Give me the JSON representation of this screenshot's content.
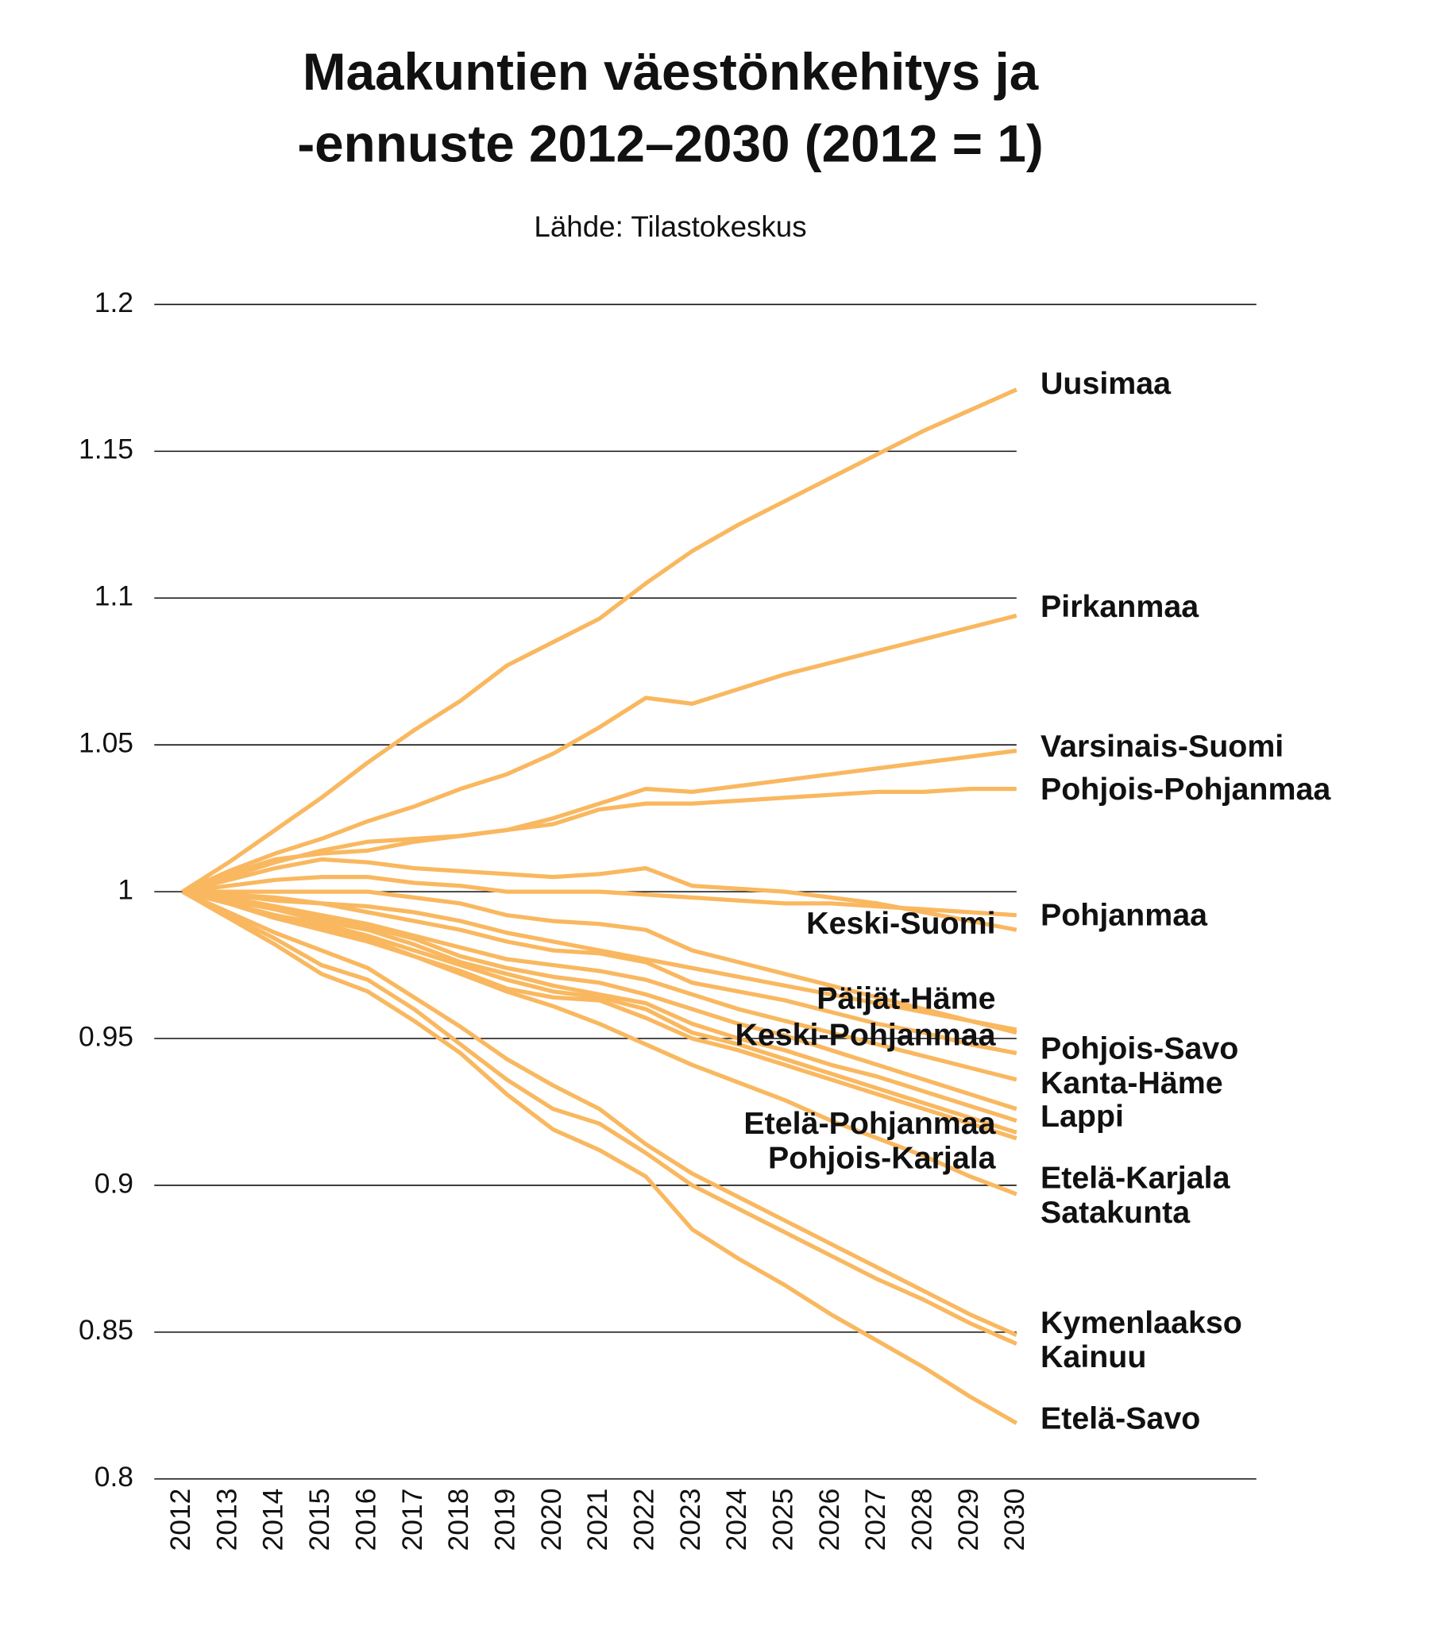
{
  "chart_data": {
    "type": "line",
    "title": [
      "Maakuntien väestönkehitys ja",
      "-ennuste 2012–2030 (2012 = 1)"
    ],
    "subtitle": "Lähde: Tilastokeskus",
    "color": "#f9b860",
    "x": [
      2012,
      2013,
      2014,
      2015,
      2016,
      2017,
      2018,
      2019,
      2020,
      2021,
      2022,
      2023,
      2024,
      2025,
      2026,
      2027,
      2028,
      2029,
      2030
    ],
    "xlim": [
      2012,
      2030
    ],
    "xticks": [
      2012,
      2013,
      2014,
      2015,
      2016,
      2017,
      2018,
      2019,
      2020,
      2021,
      2022,
      2023,
      2024,
      2025,
      2026,
      2027,
      2028,
      2029,
      2030
    ],
    "ylim": [
      0.8,
      1.2
    ],
    "yticks": [
      0.8,
      0.85,
      0.9,
      0.95,
      1,
      1.05,
      1.1,
      1.15,
      1.2
    ],
    "grid": true,
    "series": [
      {
        "name": "Uusimaa",
        "values": [
          1,
          1.01,
          1.021,
          1.032,
          1.044,
          1.055,
          1.065,
          1.077,
          1.085,
          1.093,
          1.105,
          1.116,
          1.125,
          1.133,
          1.141,
          1.149,
          1.157,
          1.164,
          1.171
        ]
      },
      {
        "name": "Pirkanmaa",
        "values": [
          1,
          1.007,
          1.013,
          1.018,
          1.024,
          1.029,
          1.035,
          1.04,
          1.047,
          1.056,
          1.066,
          1.064,
          1.069,
          1.074,
          1.078,
          1.082,
          1.086,
          1.09,
          1.094
        ]
      },
      {
        "name": "Varsinais-Suomi",
        "values": [
          1,
          1.005,
          1.01,
          1.014,
          1.017,
          1.018,
          1.019,
          1.021,
          1.025,
          1.03,
          1.035,
          1.034,
          1.036,
          1.038,
          1.04,
          1.042,
          1.044,
          1.046,
          1.048
        ]
      },
      {
        "name": "Pohjois-Pohjanmaa",
        "values": [
          1,
          1.006,
          1.011,
          1.013,
          1.014,
          1.017,
          1.019,
          1.021,
          1.023,
          1.028,
          1.03,
          1.03,
          1.031,
          1.032,
          1.033,
          1.034,
          1.034,
          1.035,
          1.035
        ]
      },
      {
        "name": "Pohjanmaa",
        "values": [
          1,
          1.002,
          1.004,
          1.005,
          1.005,
          1.003,
          1.002,
          1,
          1,
          1,
          0.999,
          0.998,
          0.997,
          0.996,
          0.996,
          0.995,
          0.994,
          0.993,
          0.992
        ]
      },
      {
        "name": "Keski-Suomi",
        "values": [
          1,
          1.004,
          1.008,
          1.011,
          1.01,
          1.008,
          1.007,
          1.006,
          1.005,
          1.006,
          1.008,
          1.002,
          1.001,
          1,
          0.998,
          0.996,
          0.993,
          0.99,
          0.987
        ]
      },
      {
        "name": "Päijät-Häme",
        "values": [
          1,
          0.999,
          0.997,
          0.996,
          0.995,
          0.993,
          0.99,
          0.986,
          0.983,
          0.98,
          0.977,
          0.974,
          0.971,
          0.968,
          0.965,
          0.962,
          0.959,
          0.956,
          0.953
        ]
      },
      {
        "name": "Keski-Pohjanmaa",
        "values": [
          1,
          0.999,
          0.998,
          0.996,
          0.993,
          0.99,
          0.987,
          0.983,
          0.98,
          0.979,
          0.976,
          0.969,
          0.966,
          0.963,
          0.959,
          0.955,
          0.952,
          0.948,
          0.945
        ]
      },
      {
        "name": "Pohjois-Savo",
        "values": [
          1,
          1,
          1,
          1,
          1,
          0.998,
          0.996,
          0.992,
          0.99,
          0.989,
          0.987,
          0.98,
          0.976,
          0.972,
          0.968,
          0.964,
          0.96,
          0.956,
          0.952
        ]
      },
      {
        "name": "Kanta-Häme",
        "values": [
          1,
          0.998,
          0.995,
          0.992,
          0.989,
          0.985,
          0.981,
          0.977,
          0.975,
          0.973,
          0.97,
          0.965,
          0.96,
          0.956,
          0.952,
          0.948,
          0.944,
          0.94,
          0.936
        ]
      },
      {
        "name": "Lappi",
        "values": [
          1,
          0.997,
          0.994,
          0.991,
          0.988,
          0.984,
          0.978,
          0.974,
          0.971,
          0.969,
          0.965,
          0.96,
          0.955,
          0.951,
          0.946,
          0.941,
          0.936,
          0.931,
          0.926
        ]
      },
      {
        "name": "Etelä-Pohjanmaa",
        "values": [
          1,
          0.997,
          0.994,
          0.99,
          0.987,
          0.982,
          0.976,
          0.972,
          0.968,
          0.965,
          0.962,
          0.955,
          0.95,
          0.946,
          0.941,
          0.937,
          0.932,
          0.927,
          0.922
        ]
      },
      {
        "name": "Pohjois-Karjala",
        "values": [
          1,
          0.996,
          0.992,
          0.989,
          0.985,
          0.98,
          0.975,
          0.97,
          0.966,
          0.964,
          0.96,
          0.952,
          0.948,
          0.943,
          0.938,
          0.933,
          0.928,
          0.923,
          0.918
        ]
      },
      {
        "name": "Etelä-Karjala",
        "values": [
          1,
          0.996,
          0.991,
          0.988,
          0.984,
          0.978,
          0.973,
          0.967,
          0.964,
          0.963,
          0.957,
          0.95,
          0.946,
          0.941,
          0.936,
          0.931,
          0.926,
          0.921,
          0.916
        ]
      },
      {
        "name": "Satakunta",
        "values": [
          1,
          0.996,
          0.991,
          0.987,
          0.983,
          0.978,
          0.972,
          0.966,
          0.961,
          0.955,
          0.948,
          0.941,
          0.935,
          0.929,
          0.922,
          0.916,
          0.91,
          0.903,
          0.897
        ]
      },
      {
        "name": "Kymenlaakso",
        "values": [
          1,
          0.993,
          0.986,
          0.98,
          0.974,
          0.964,
          0.954,
          0.943,
          0.934,
          0.926,
          0.914,
          0.904,
          0.896,
          0.888,
          0.88,
          0.872,
          0.864,
          0.856,
          0.849
        ]
      },
      {
        "name": "Kainuu",
        "values": [
          1,
          0.992,
          0.984,
          0.975,
          0.97,
          0.96,
          0.948,
          0.936,
          0.926,
          0.921,
          0.911,
          0.9,
          0.892,
          0.884,
          0.876,
          0.868,
          0.861,
          0.853,
          0.846
        ]
      },
      {
        "name": "Etelä-Savo",
        "values": [
          1,
          0.991,
          0.982,
          0.972,
          0.966,
          0.956,
          0.945,
          0.931,
          0.919,
          0.912,
          0.903,
          0.885,
          0.875,
          0.866,
          0.856,
          0.847,
          0.838,
          0.828,
          0.819
        ]
      }
    ]
  }
}
